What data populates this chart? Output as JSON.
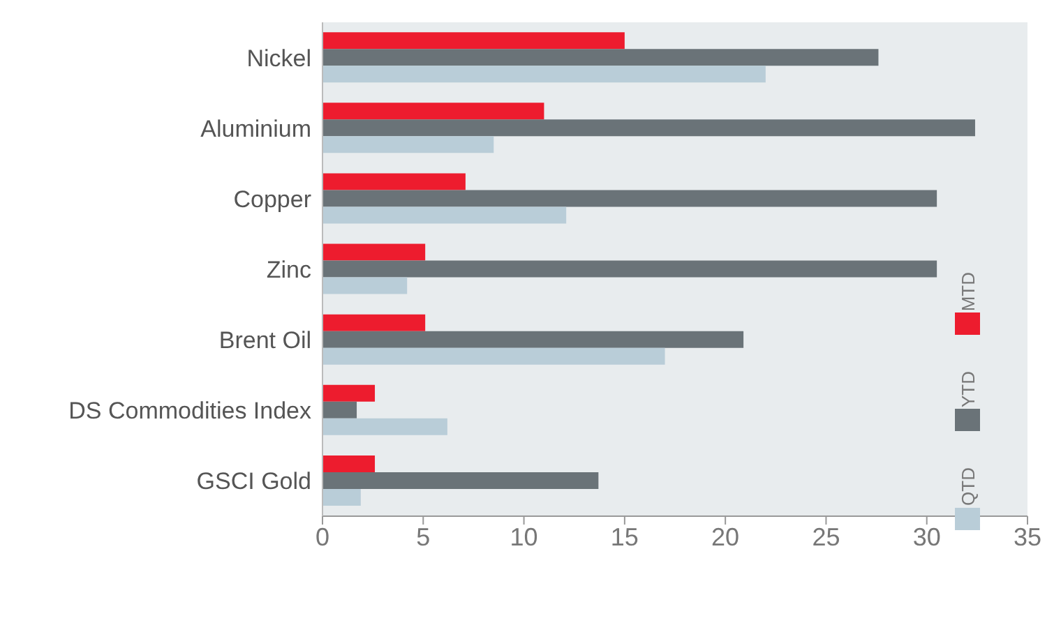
{
  "chart_data": {
    "type": "bar",
    "orientation": "horizontal",
    "categories": [
      "Nickel",
      "Aluminium",
      "Copper",
      "Zinc",
      "Brent Oil",
      "DS Commodities Index",
      "GSCI Gold"
    ],
    "series": [
      {
        "name": "MTD",
        "color": "#ed1c2e",
        "values": [
          15.0,
          11.0,
          7.1,
          5.1,
          5.1,
          2.6,
          2.6
        ]
      },
      {
        "name": "YTD",
        "color": "#6a7378",
        "values": [
          27.6,
          32.4,
          30.5,
          30.5,
          20.9,
          1.7,
          13.7
        ]
      },
      {
        "name": "QTD",
        "color": "#b9cdd8",
        "values": [
          22.0,
          8.5,
          12.1,
          4.2,
          17.0,
          6.2,
          1.9
        ]
      }
    ],
    "xlim": [
      0,
      35
    ],
    "xticks": [
      0,
      5,
      10,
      15,
      20,
      25,
      30,
      35
    ],
    "grid": false,
    "legend": "right"
  }
}
